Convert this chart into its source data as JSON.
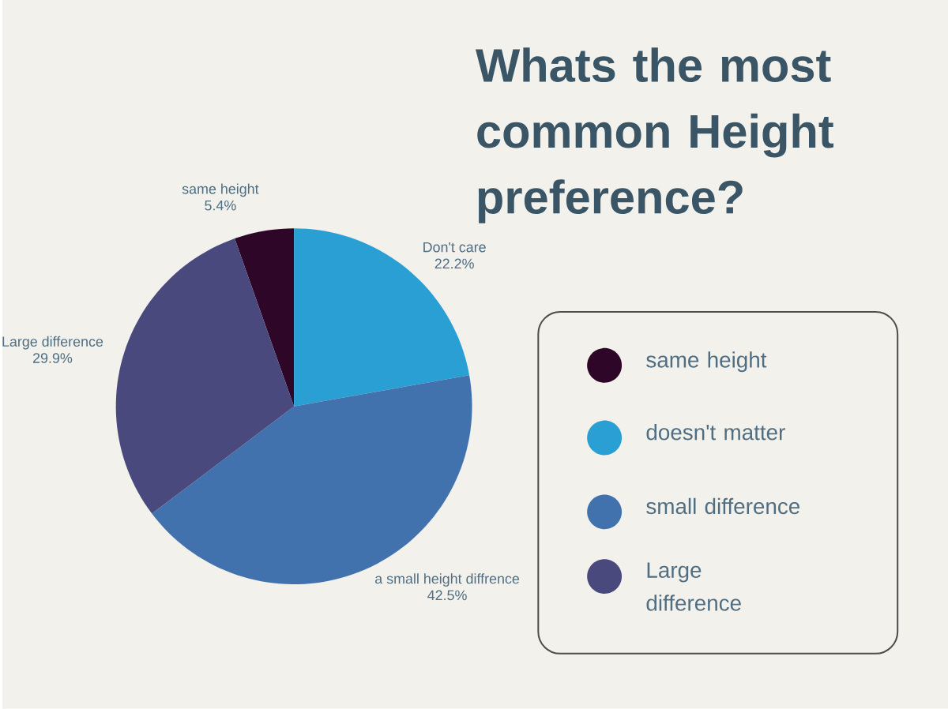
{
  "chart_data": {
    "type": "pie",
    "title": "Whats the most common Height preference?",
    "categories": [
      "same height",
      "Don't care",
      "a small height diffrence",
      "Large difference"
    ],
    "values": [
      5.4,
      22.2,
      42.5,
      29.9
    ],
    "value_labels": [
      "5.4%",
      "22.2%",
      "42.5%",
      "29.9%"
    ],
    "colors": [
      "#2d0628",
      "#2a9fd4",
      "#4272ae",
      "#4a497e"
    ],
    "annotations": [
      "same height",
      "doesn't matter",
      "small difference",
      "Large difference"
    ]
  }
}
